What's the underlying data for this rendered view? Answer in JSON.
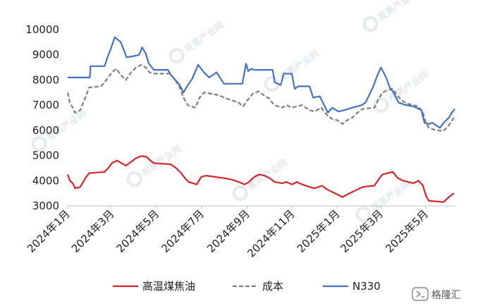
{
  "chart_data": {
    "type": "line",
    "title": "",
    "xlabel": "",
    "ylabel": "",
    "ylim": [
      3000,
      10000
    ],
    "yticks": [
      3000,
      4000,
      5000,
      6000,
      7000,
      8000,
      9000,
      10000
    ],
    "xlim": [
      "2024-01-01",
      "2025-06-10"
    ],
    "xticks": [
      {
        "date": "2024-01-01",
        "label": "2024年1月"
      },
      {
        "date": "2024-03-01",
        "label": "2024年3月"
      },
      {
        "date": "2024-05-01",
        "label": "2024年5月"
      },
      {
        "date": "2024-07-01",
        "label": "2024年7月"
      },
      {
        "date": "2024-09-01",
        "label": "2024年9月"
      },
      {
        "date": "2024-11-01",
        "label": "2024年11月"
      },
      {
        "date": "2025-01-01",
        "label": "2025年1月"
      },
      {
        "date": "2025-03-01",
        "label": "2025年3月"
      },
      {
        "date": "2025-05-01",
        "label": "2025年5月"
      }
    ],
    "grid": false,
    "legend_position": "bottom",
    "series": [
      {
        "name": "高温煤焦油",
        "color": "#d6262b",
        "style": "solid",
        "points": [
          [
            "2024-01-01",
            4250
          ],
          [
            "2024-01-04",
            4000
          ],
          [
            "2024-01-08",
            3900
          ],
          [
            "2024-01-11",
            3700
          ],
          [
            "2024-01-18",
            3750
          ],
          [
            "2024-01-25",
            4100
          ],
          [
            "2024-01-30",
            4300
          ],
          [
            "2024-02-20",
            4350
          ],
          [
            "2024-02-25",
            4500
          ],
          [
            "2024-03-01",
            4700
          ],
          [
            "2024-03-08",
            4800
          ],
          [
            "2024-03-14",
            4700
          ],
          [
            "2024-03-20",
            4600
          ],
          [
            "2024-03-27",
            4750
          ],
          [
            "2024-04-03",
            4900
          ],
          [
            "2024-04-10",
            4980
          ],
          [
            "2024-04-17",
            4950
          ],
          [
            "2024-04-22",
            4800
          ],
          [
            "2024-04-27",
            4700
          ],
          [
            "2024-05-20",
            4650
          ],
          [
            "2024-05-27",
            4500
          ],
          [
            "2024-06-03",
            4300
          ],
          [
            "2024-06-08",
            4100
          ],
          [
            "2024-06-13",
            3950
          ],
          [
            "2024-06-24",
            3850
          ],
          [
            "2024-06-30",
            4150
          ],
          [
            "2024-07-07",
            4200
          ],
          [
            "2024-07-31",
            4100
          ],
          [
            "2024-08-10",
            4050
          ],
          [
            "2024-08-20",
            3950
          ],
          [
            "2024-08-28",
            3850
          ],
          [
            "2024-09-03",
            3950
          ],
          [
            "2024-09-10",
            4150
          ],
          [
            "2024-09-17",
            4250
          ],
          [
            "2024-09-24",
            4200
          ],
          [
            "2024-10-01",
            4100
          ],
          [
            "2024-10-08",
            3950
          ],
          [
            "2024-10-18",
            3900
          ],
          [
            "2024-10-24",
            3950
          ],
          [
            "2024-10-31",
            3850
          ],
          [
            "2024-11-07",
            3950
          ],
          [
            "2024-11-14",
            3850
          ],
          [
            "2024-11-24",
            3750
          ],
          [
            "2024-12-01",
            3700
          ],
          [
            "2024-12-11",
            3800
          ],
          [
            "2024-12-18",
            3650
          ],
          [
            "2024-12-25",
            3550
          ],
          [
            "2025-01-01",
            3450
          ],
          [
            "2025-01-08",
            3350
          ],
          [
            "2025-01-14",
            3450
          ],
          [
            "2025-01-21",
            3550
          ],
          [
            "2025-01-28",
            3650
          ],
          [
            "2025-02-04",
            3750
          ],
          [
            "2025-02-20",
            3800
          ],
          [
            "2025-02-27",
            4100
          ],
          [
            "2025-03-03",
            4250
          ],
          [
            "2025-03-10",
            4300
          ],
          [
            "2025-03-17",
            4350
          ],
          [
            "2025-03-24",
            4100
          ],
          [
            "2025-03-31",
            4000
          ],
          [
            "2025-04-07",
            3950
          ],
          [
            "2025-04-14",
            3900
          ],
          [
            "2025-04-21",
            4000
          ],
          [
            "2025-04-27",
            3800
          ],
          [
            "2025-05-01",
            3400
          ],
          [
            "2025-05-05",
            3200
          ],
          [
            "2025-05-15",
            3180
          ],
          [
            "2025-05-25",
            3150
          ],
          [
            "2025-06-01",
            3350
          ],
          [
            "2025-06-08",
            3500
          ]
        ]
      },
      {
        "name": "成本",
        "color": "#7f7f7f",
        "style": "dashed",
        "points": [
          [
            "2024-01-01",
            7500
          ],
          [
            "2024-01-04",
            7100
          ],
          [
            "2024-01-08",
            6900
          ],
          [
            "2024-01-11",
            6700
          ],
          [
            "2024-01-18",
            6800
          ],
          [
            "2024-01-25",
            7300
          ],
          [
            "2024-01-30",
            7700
          ],
          [
            "2024-02-15",
            7750
          ],
          [
            "2024-02-20",
            7900
          ],
          [
            "2024-02-25",
            8100
          ],
          [
            "2024-03-01",
            8300
          ],
          [
            "2024-03-07",
            8450
          ],
          [
            "2024-03-13",
            8200
          ],
          [
            "2024-03-20",
            8000
          ],
          [
            "2024-03-27",
            8300
          ],
          [
            "2024-04-03",
            8500
          ],
          [
            "2024-04-10",
            8600
          ],
          [
            "2024-04-16",
            8500
          ],
          [
            "2024-04-21",
            8300
          ],
          [
            "2024-04-27",
            8250
          ],
          [
            "2024-05-19",
            8250
          ],
          [
            "2024-05-25",
            8050
          ],
          [
            "2024-06-01",
            7700
          ],
          [
            "2024-06-06",
            7300
          ],
          [
            "2024-06-12",
            7000
          ],
          [
            "2024-06-22",
            6900
          ],
          [
            "2024-06-28",
            7300
          ],
          [
            "2024-07-04",
            7500
          ],
          [
            "2024-07-24",
            7400
          ],
          [
            "2024-07-31",
            7300
          ],
          [
            "2024-08-10",
            7200
          ],
          [
            "2024-08-20",
            7100
          ],
          [
            "2024-08-26",
            6950
          ],
          [
            "2024-09-01",
            7200
          ],
          [
            "2024-09-08",
            7450
          ],
          [
            "2024-09-16",
            7550
          ],
          [
            "2024-09-23",
            7400
          ],
          [
            "2024-10-01",
            7250
          ],
          [
            "2024-10-07",
            7000
          ],
          [
            "2024-10-18",
            6900
          ],
          [
            "2024-10-24",
            7000
          ],
          [
            "2024-10-31",
            6900
          ],
          [
            "2024-11-07",
            6950
          ],
          [
            "2024-11-14",
            7000
          ],
          [
            "2024-11-24",
            6800
          ],
          [
            "2024-12-01",
            6750
          ],
          [
            "2024-12-10",
            6900
          ],
          [
            "2024-12-18",
            6600
          ],
          [
            "2024-12-25",
            6450
          ],
          [
            "2025-01-01",
            6400
          ],
          [
            "2025-01-08",
            6250
          ],
          [
            "2025-01-14",
            6400
          ],
          [
            "2025-01-21",
            6500
          ],
          [
            "2025-01-28",
            6700
          ],
          [
            "2025-02-04",
            6850
          ],
          [
            "2025-02-20",
            6900
          ],
          [
            "2025-02-27",
            7300
          ],
          [
            "2025-03-03",
            7500
          ],
          [
            "2025-03-10",
            7600
          ],
          [
            "2025-03-17",
            7650
          ],
          [
            "2025-03-24",
            7350
          ],
          [
            "2025-03-31",
            7150
          ],
          [
            "2025-04-07",
            7050
          ],
          [
            "2025-04-14",
            7000
          ],
          [
            "2025-04-21",
            6950
          ],
          [
            "2025-04-27",
            6700
          ],
          [
            "2025-05-01",
            6300
          ],
          [
            "2025-05-05",
            6100
          ],
          [
            "2025-05-15",
            6000
          ],
          [
            "2025-05-25",
            5980
          ],
          [
            "2025-06-01",
            6200
          ],
          [
            "2025-06-08",
            6500
          ]
        ]
      },
      {
        "name": "N330",
        "color": "#4472c4",
        "style": "solid",
        "points": [
          [
            "2024-01-01",
            8100
          ],
          [
            "2024-01-31",
            8100
          ],
          [
            "2024-02-01",
            8550
          ],
          [
            "2024-02-20",
            8550
          ],
          [
            "2024-02-24",
            8900
          ],
          [
            "2024-02-28",
            9200
          ],
          [
            "2024-03-05",
            9700
          ],
          [
            "2024-03-13",
            9500
          ],
          [
            "2024-03-17",
            9200
          ],
          [
            "2024-03-21",
            8900
          ],
          [
            "2024-03-31",
            8950
          ],
          [
            "2024-04-07",
            9000
          ],
          [
            "2024-04-11",
            9300
          ],
          [
            "2024-04-16",
            9050
          ],
          [
            "2024-04-20",
            8650
          ],
          [
            "2024-04-27",
            8400
          ],
          [
            "2024-05-16",
            8400
          ],
          [
            "2024-05-20",
            8200
          ],
          [
            "2024-05-26",
            8000
          ],
          [
            "2024-06-01",
            7800
          ],
          [
            "2024-06-06",
            7500
          ],
          [
            "2024-06-11",
            7750
          ],
          [
            "2024-06-18",
            8050
          ],
          [
            "2024-06-26",
            8600
          ],
          [
            "2024-07-04",
            8300
          ],
          [
            "2024-07-11",
            8100
          ],
          [
            "2024-07-21",
            8300
          ],
          [
            "2024-07-31",
            7850
          ],
          [
            "2024-08-25",
            7850
          ],
          [
            "2024-08-30",
            8650
          ],
          [
            "2024-09-02",
            8350
          ],
          [
            "2024-09-06",
            8450
          ],
          [
            "2024-09-10",
            8400
          ],
          [
            "2024-10-05",
            8400
          ],
          [
            "2024-10-08",
            7900
          ],
          [
            "2024-10-16",
            7800
          ],
          [
            "2024-10-20",
            8250
          ],
          [
            "2024-10-31",
            8250
          ],
          [
            "2024-11-04",
            7650
          ],
          [
            "2024-11-09",
            7750
          ],
          [
            "2024-11-24",
            7750
          ],
          [
            "2024-11-29",
            7300
          ],
          [
            "2024-12-08",
            7350
          ],
          [
            "2024-12-14",
            7000
          ],
          [
            "2024-12-19",
            6700
          ],
          [
            "2024-12-25",
            6900
          ],
          [
            "2025-01-02",
            6750
          ],
          [
            "2025-01-10",
            6800
          ],
          [
            "2025-01-21",
            6900
          ],
          [
            "2025-02-03",
            7000
          ],
          [
            "2025-02-08",
            7100
          ],
          [
            "2025-02-13",
            7400
          ],
          [
            "2025-02-18",
            7700
          ],
          [
            "2025-02-23",
            8100
          ],
          [
            "2025-03-01",
            8500
          ],
          [
            "2025-03-08",
            8100
          ],
          [
            "2025-03-13",
            7700
          ],
          [
            "2025-03-18",
            7500
          ],
          [
            "2025-03-25",
            7100
          ],
          [
            "2025-04-04",
            7000
          ],
          [
            "2025-04-14",
            6950
          ],
          [
            "2025-04-25",
            6800
          ],
          [
            "2025-04-29",
            6300
          ],
          [
            "2025-05-05",
            6250
          ],
          [
            "2025-05-10",
            6300
          ],
          [
            "2025-05-20",
            6100
          ],
          [
            "2025-05-25",
            6300
          ],
          [
            "2025-06-01",
            6500
          ],
          [
            "2025-06-05",
            6700
          ],
          [
            "2025-06-09",
            6850
          ]
        ]
      }
    ]
  },
  "watermark": {
    "text": "炭黑产业网"
  },
  "brand": {
    "text": "格隆汇",
    "logo_icon": "gelonghui-logo-icon"
  }
}
